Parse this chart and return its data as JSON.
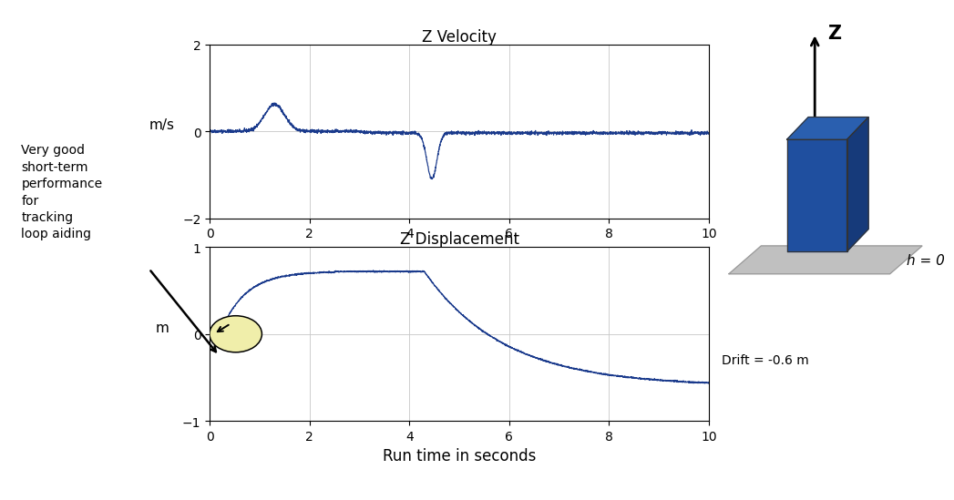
{
  "title_velocity": "Z Velocity",
  "title_displacement": "Z Displacement",
  "xlabel": "Run time in seconds",
  "ylabel_velocity": "m/s",
  "ylabel_displacement": "m",
  "xlim": [
    0,
    10
  ],
  "ylim_velocity": [
    -2,
    2
  ],
  "ylim_displacement": [
    -1,
    1
  ],
  "xticks": [
    0,
    2,
    4,
    6,
    8,
    10
  ],
  "yticks_velocity": [
    -2,
    0,
    2
  ],
  "yticks_displacement": [
    -1,
    0,
    1
  ],
  "line_color": "#1a3a8c",
  "annotation_text": "Very good\nshort-term\nperformance\nfor\ntracking\nloop aiding",
  "drift_text": "Drift = -0.6 m",
  "bg_color": "#ffffff",
  "grid_color": "#c8c8c8",
  "ellipse_color": "#f0eeaa",
  "z_label": "Z",
  "h_label": "h = 0",
  "box_front_color": "#1f4f9f",
  "box_top_color": "#2a5faf",
  "box_right_color": "#163a7a",
  "ground_color": "#c0c0c0"
}
